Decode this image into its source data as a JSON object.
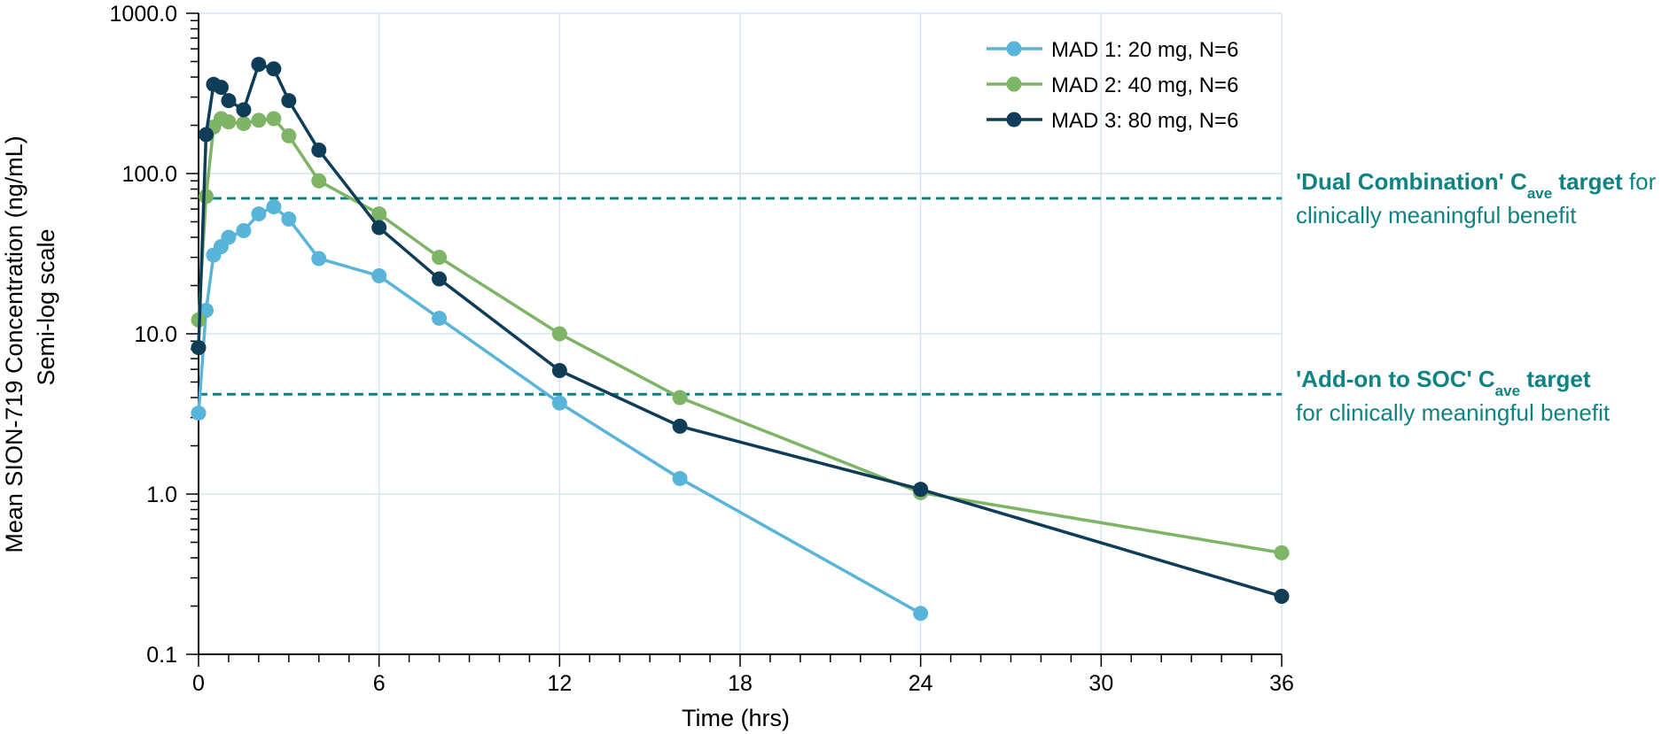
{
  "chart_data": {
    "type": "line",
    "xlabel": "Time (hrs)",
    "ylabel": "Mean SION-719 Concentration (ng/mL)",
    "ylabel_sub": "Semi-log scale",
    "xlim": [
      0,
      36
    ],
    "ylim": [
      0.1,
      1000
    ],
    "yscale": "log",
    "x_ticks": [
      0,
      6,
      12,
      18,
      24,
      30,
      36
    ],
    "x_tick_labels": [
      "0",
      "6",
      "12",
      "18",
      "24",
      "30",
      "36"
    ],
    "y_ticks": [
      0.1,
      1,
      10,
      100,
      1000
    ],
    "y_tick_labels": [
      "0.1",
      "1.0",
      "10.0",
      "100.0",
      "1000.0"
    ],
    "grid": true,
    "legend_position": "top-right",
    "series": [
      {
        "name": "MAD 1: 20 mg, N=6",
        "color": "#58b4d8",
        "x": [
          0,
          0.25,
          0.5,
          0.75,
          1,
          1.5,
          2,
          2.5,
          3,
          4,
          6,
          8,
          12,
          16,
          24
        ],
        "y": [
          3.2,
          14,
          31,
          35,
          40,
          44,
          56,
          62,
          52,
          29.5,
          23,
          12.5,
          3.7,
          1.25,
          0.18
        ]
      },
      {
        "name": "MAD 2: 40 mg, N=6",
        "color": "#7db465",
        "x": [
          0,
          0.25,
          0.5,
          0.75,
          1,
          1.5,
          2,
          2.5,
          3,
          4,
          6,
          8,
          12,
          16,
          24,
          36
        ],
        "y": [
          12.2,
          72,
          195,
          220,
          210,
          205,
          215,
          220,
          172,
          90,
          56,
          30,
          10,
          4.0,
          1.02,
          0.43
        ]
      },
      {
        "name": "MAD 3: 80 mg, N=6",
        "color": "#0f3d57",
        "x": [
          0,
          0.25,
          0.5,
          0.75,
          1,
          1.5,
          2,
          2.5,
          3,
          4,
          6,
          8,
          12,
          16,
          24,
          36
        ],
        "y": [
          8.2,
          175,
          360,
          345,
          285,
          250,
          480,
          450,
          285,
          140,
          46,
          22,
          5.9,
          2.65,
          1.07,
          0.23
        ]
      }
    ],
    "reference_lines": [
      {
        "y": 70,
        "color": "#0f8383",
        "label_bold": "'Dual Combination' C",
        "label_sub": "ave",
        "label_bold_end": " target",
        "label_rest": " for",
        "label_line2": "clinically meaningful benefit"
      },
      {
        "y": 4.2,
        "color": "#0f8383",
        "label_bold": "'Add-on to SOC' C",
        "label_sub": "ave",
        "label_bold_end": " target",
        "label_rest": "",
        "label_line2": "for clinically meaningful benefit"
      }
    ],
    "grid_color": "#d5e6ec",
    "annotation_color": "#0f8383"
  }
}
